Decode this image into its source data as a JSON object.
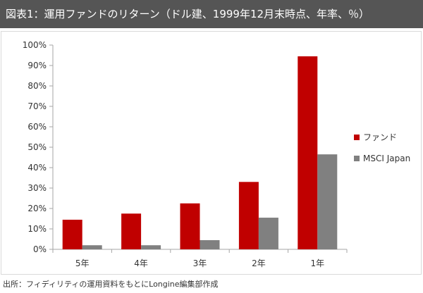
{
  "header": {
    "title": "図表1：運用ファンドのリターン（ドル建、1999年12月末時点、年率、％）"
  },
  "footer": {
    "source": "出所：フィディリティの運用資料をもとにLongine編集部作成"
  },
  "chart_data": {
    "type": "bar",
    "title": "",
    "xlabel": "",
    "ylabel": "",
    "categories": [
      "5年",
      "4年",
      "3年",
      "2年",
      "1年"
    ],
    "series": [
      {
        "name": "ファンド",
        "values": [
          14.5,
          17.5,
          22.5,
          33,
          94.5
        ],
        "color": "#c00000"
      },
      {
        "name": "MSCI Japan",
        "values": [
          2,
          2,
          4.5,
          15.5,
          46.5
        ],
        "color": "#808080"
      }
    ],
    "yticks": [
      "0%",
      "10%",
      "20%",
      "30%",
      "40%",
      "50%",
      "60%",
      "70%",
      "80%",
      "90%",
      "100%"
    ],
    "ylim": [
      0,
      100
    ],
    "grid": false,
    "legend_position": "right"
  }
}
